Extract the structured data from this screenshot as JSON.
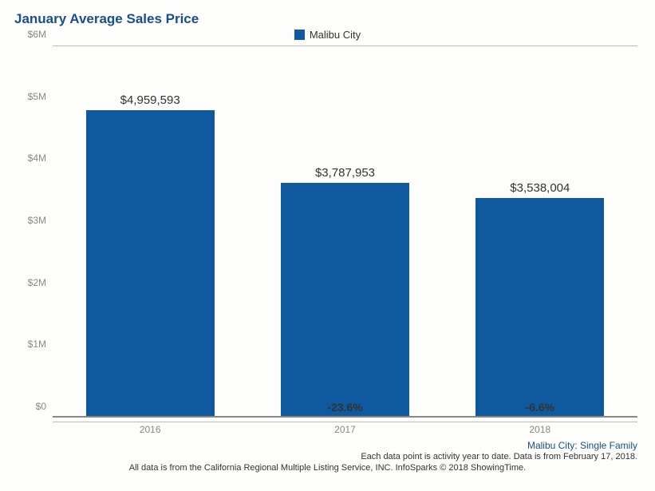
{
  "chart": {
    "type": "bar",
    "title": "January Average Sales Price",
    "title_color": "#1a4e8a",
    "title_fontsize": 17,
    "legend": {
      "label": "Malibu City",
      "swatch_color": "#0f5a9e"
    },
    "y_axis": {
      "min": 0,
      "max": 6000000,
      "ticks": [
        {
          "value": 0,
          "label": "$0"
        },
        {
          "value": 1000000,
          "label": "$1M"
        },
        {
          "value": 2000000,
          "label": "$2M"
        },
        {
          "value": 3000000,
          "label": "$3M"
        },
        {
          "value": 4000000,
          "label": "$4M"
        },
        {
          "value": 5000000,
          "label": "$5M"
        },
        {
          "value": 6000000,
          "label": "$6M"
        }
      ],
      "label_color": "#888888",
      "label_fontsize": 12
    },
    "x_axis": {
      "categories": [
        "2016",
        "2017",
        "2018"
      ],
      "label_color": "#888888",
      "label_fontsize": 12
    },
    "bars": [
      {
        "category": "2016",
        "value": 4959593,
        "value_label": "$4,959,593",
        "pct_change_label": ""
      },
      {
        "category": "2017",
        "value": 3787953,
        "value_label": "$3,787,953",
        "pct_change_label": "-23.6%"
      },
      {
        "category": "2018",
        "value": 3538004,
        "value_label": "$3,538,004",
        "pct_change_label": "-6.6%"
      }
    ],
    "bar_color": "#0f5a9e",
    "bar_width_ratio": 0.66,
    "background_color": "#fdfdfb",
    "axis_line_color": "#888888",
    "value_label_fontsize": 15,
    "pct_label_fontsize": 14
  },
  "footer": {
    "subtitle": "Malibu City: Single Family",
    "subtitle_color": "#1a4e8a",
    "note": "Each data point is activity year to date. Data is from February 17, 2018.",
    "source": "All data is from the California Regional Multiple Listing Service, INC. InfoSparks © 2018 ShowingTime."
  }
}
